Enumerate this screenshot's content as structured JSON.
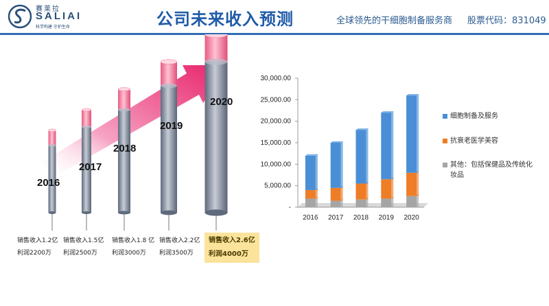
{
  "header": {
    "logo_cn": "赛莱拉",
    "logo_en": "SALIAI",
    "logo_slogan": "科学构建 守护生命",
    "title": "公司未来收入预测",
    "tagline": "全球领先的干细胞制备服务商",
    "stock_code": "股票代码：831049"
  },
  "colors": {
    "title_blue": "#1f5ba8",
    "arrow_pink": "#e8226a",
    "cylinder_gray": "#8a93a4",
    "cylinder_pink": "#f07b9c",
    "series_blue": "#4a8fd6",
    "series_orange": "#ee7d28",
    "series_gray": "#a5a5a5",
    "highlight": "#fbe39b"
  },
  "forecast": [
    {
      "year": "2016",
      "revenue_label": "销售收入1.2亿",
      "profit_label": "利润2200万",
      "revenue": 1.2,
      "profit": 0.22,
      "highlight": false
    },
    {
      "year": "2017",
      "revenue_label": "销售收入1.5亿",
      "profit_label": "利润2500万",
      "revenue": 1.5,
      "profit": 0.25,
      "highlight": false
    },
    {
      "year": "2018",
      "revenue_label": "销售收入1.8 亿",
      "profit_label": "利润3000万",
      "revenue": 1.8,
      "profit": 0.3,
      "highlight": false
    },
    {
      "year": "2019",
      "revenue_label": "销售收入2.2亿",
      "profit_label": "利润3500万",
      "revenue": 2.2,
      "profit": 0.35,
      "highlight": false
    },
    {
      "year": "2020",
      "revenue_label": "销售收入2.6亿",
      "profit_label": "利润4000万",
      "revenue": 2.6,
      "profit": 0.4,
      "highlight": true
    }
  ],
  "chart_data": {
    "type": "bar",
    "stacked": true,
    "categories": [
      "2016",
      "2017",
      "2018",
      "2019",
      "2020"
    ],
    "series": [
      {
        "name": "其他：包括保健品及传统化妆品",
        "color": "#a5a5a5",
        "values": [
          2000,
          1500,
          1800,
          2000,
          2600
        ]
      },
      {
        "name": "抗衰老医学美容",
        "color": "#ee7d28",
        "values": [
          2000,
          3000,
          3700,
          4500,
          5400
        ]
      },
      {
        "name": "细胞制备及服务",
        "color": "#4a8fd6",
        "values": [
          8000,
          10500,
          12500,
          15500,
          18000
        ]
      }
    ],
    "legend_order": [
      2,
      1,
      0
    ],
    "ylim": [
      0,
      30000
    ],
    "yticks": [
      0,
      5000,
      10000,
      15000,
      20000,
      25000,
      30000
    ],
    "ytick_labels": [
      "-",
      "5,000.00",
      "10,000.00",
      "15,000.00",
      "20,000.00",
      "25,000.00",
      "30,000.00"
    ],
    "legend_position": "right"
  }
}
